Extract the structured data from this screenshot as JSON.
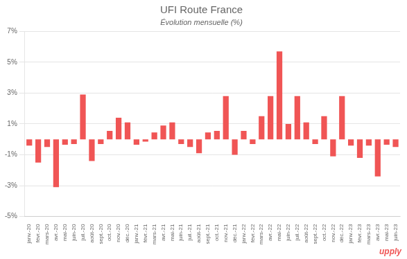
{
  "chart_data": {
    "type": "bar",
    "title": "UFI Route France",
    "subtitle": "Évolution mensuelle (%)",
    "annotations": [
      "upply"
    ],
    "color": "#f05555",
    "categories": [
      "janv.-20",
      "févr.-20",
      "mars-20",
      "avr.-20",
      "mai-20",
      "juin-20",
      "juil.-20",
      "août-20",
      "sept.-20",
      "oct.-20",
      "nov.-20",
      "déc.-20",
      "janv.-21",
      "févr.-21",
      "mars-21",
      "avr.-21",
      "mai-21",
      "juin-21",
      "juil.-21",
      "août-21",
      "sept.-21",
      "oct.-21",
      "nov.-21",
      "déc.-21",
      "janv.-22",
      "févr.-22",
      "mars-22",
      "avr.-22",
      "mai-22",
      "juin-22",
      "juil.-22",
      "août-22",
      "sept.-22",
      "oct.-22",
      "nov.-22",
      "déc.-22",
      "janv.-23",
      "févr.-23",
      "mars-23",
      "avr.-23",
      "mai-23",
      "juin-23"
    ],
    "values": [
      -0.4,
      -1.5,
      -0.5,
      -3.1,
      -0.35,
      -0.3,
      2.9,
      -1.4,
      -0.3,
      0.55,
      1.4,
      1.1,
      -0.35,
      -0.15,
      0.45,
      0.9,
      1.1,
      -0.3,
      -0.5,
      -0.9,
      0.45,
      0.55,
      2.8,
      -1.0,
      0.55,
      -0.3,
      1.5,
      2.8,
      5.7,
      1.0,
      2.8,
      1.1,
      -0.3,
      1.5,
      -1.1,
      2.8,
      -0.4,
      -1.2,
      -0.4,
      -2.4,
      -0.35,
      -0.5
    ],
    "ylim": [
      -5,
      7
    ],
    "yticks": [
      {
        "value": -5,
        "label": "-5%"
      },
      {
        "value": -3,
        "label": "-3%"
      },
      {
        "value": -1,
        "label": "-1%"
      },
      {
        "value": 1,
        "label": "1%"
      },
      {
        "value": 3,
        "label": "3%"
      },
      {
        "value": 5,
        "label": "5%"
      },
      {
        "value": 7,
        "label": "7%"
      }
    ],
    "grid": true
  }
}
